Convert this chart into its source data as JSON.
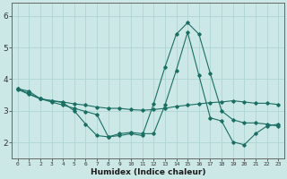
{
  "xlabel": "Humidex (Indice chaleur)",
  "x_ticks": [
    0,
    1,
    2,
    3,
    4,
    5,
    6,
    7,
    8,
    9,
    10,
    11,
    12,
    13,
    14,
    15,
    16,
    17,
    18,
    19,
    20,
    21,
    22,
    23
  ],
  "y_ticks": [
    2,
    3,
    4,
    5,
    6
  ],
  "xlim": [
    -0.5,
    23.5
  ],
  "ylim": [
    1.5,
    6.4
  ],
  "bg_color": "#cce8e6",
  "grid_color": "#aed4d2",
  "line_color": "#1a6e63",
  "series": [
    [
      3.7,
      3.62,
      3.38,
      3.32,
      3.28,
      3.22,
      3.18,
      3.12,
      3.08,
      3.08,
      3.04,
      3.02,
      3.04,
      3.08,
      3.14,
      3.18,
      3.22,
      3.26,
      3.28,
      3.32,
      3.28,
      3.24,
      3.24,
      3.2
    ],
    [
      3.68,
      3.52,
      3.38,
      3.32,
      3.26,
      3.0,
      2.58,
      2.22,
      2.18,
      2.22,
      2.28,
      2.22,
      3.22,
      4.38,
      5.42,
      5.78,
      5.42,
      4.18,
      3.0,
      2.72,
      2.62,
      2.62,
      2.58,
      2.52
    ],
    [
      3.7,
      3.55,
      3.38,
      3.28,
      3.18,
      3.08,
      2.98,
      2.88,
      2.18,
      2.28,
      2.32,
      2.28,
      2.28,
      3.18,
      4.28,
      5.48,
      4.12,
      2.78,
      2.68,
      2.02,
      1.93,
      2.28,
      2.52,
      2.58
    ]
  ]
}
